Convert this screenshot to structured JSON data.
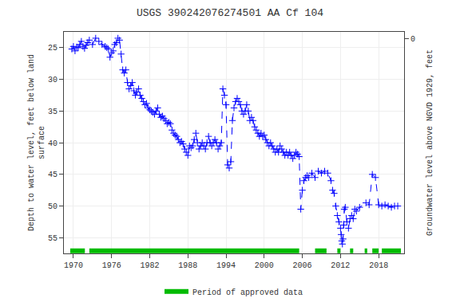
{
  "chart_data": {
    "type": "line",
    "title": "USGS 390242076274501 AA Cf 104",
    "ylabel": "Depth to water level, feet below land\nsurface",
    "y2label": "Groundwater level above NGVD 1929, feet",
    "x": [
      1969.75,
      1970.0,
      1970.25,
      1970.5,
      1970.75,
      1971.0,
      1971.25,
      1971.5,
      1971.75,
      1972.0,
      1972.25,
      1972.5,
      1973.0,
      1973.5,
      1974.0,
      1974.5,
      1975.0,
      1975.25,
      1975.5,
      1975.75,
      1976.0,
      1976.25,
      1976.5,
      1976.75,
      1977.0,
      1977.25,
      1977.5,
      1977.75,
      1978.0,
      1978.25,
      1978.5,
      1978.75,
      1979.0,
      1979.25,
      1979.5,
      1979.75,
      1980.0,
      1980.25,
      1980.5,
      1980.75,
      1981.0,
      1981.25,
      1981.5,
      1981.75,
      1982.0,
      1982.25,
      1982.5,
      1982.75,
      1983.0,
      1983.25,
      1983.5,
      1983.75,
      1984.0,
      1984.25,
      1984.5,
      1984.75,
      1985.0,
      1985.25,
      1985.5,
      1985.75,
      1986.0,
      1986.25,
      1986.5,
      1986.75,
      1987.0,
      1987.25,
      1987.5,
      1987.75,
      1988.0,
      1988.25,
      1988.5,
      1988.75,
      1989.0,
      1989.25,
      1989.5,
      1989.75,
      1990.0,
      1990.25,
      1990.5,
      1990.75,
      1991.0,
      1991.25,
      1991.5,
      1991.75,
      1992.0,
      1992.25,
      1992.5,
      1992.75,
      1993.0,
      1993.25,
      1993.5,
      1993.75,
      1994.0,
      1994.25,
      1994.5,
      1994.75,
      1995.0,
      1995.25,
      1995.5,
      1995.75,
      1996.0,
      1996.25,
      1996.5,
      1996.75,
      1997.0,
      1997.25,
      1997.5,
      1997.75,
      1998.0,
      1998.25,
      1998.5,
      1998.75,
      1999.0,
      1999.25,
      1999.5,
      1999.75,
      2000.0,
      2000.25,
      2000.5,
      2000.75,
      2001.0,
      2001.25,
      2001.5,
      2001.75,
      2002.0,
      2002.25,
      2002.5,
      2002.75,
      2003.0,
      2003.25,
      2003.5,
      2003.75,
      2004.0,
      2004.25,
      2004.5,
      2004.75,
      2005.0,
      2005.25,
      2005.5,
      2005.75,
      2006.0,
      2006.25,
      2006.5,
      2006.75,
      2007.0,
      2007.5,
      2008.0,
      2008.5,
      2009.0,
      2009.5,
      2010.0,
      2010.5,
      2010.75,
      2011.0,
      2011.25,
      2011.5,
      2011.75,
      2012.0,
      2012.1,
      2012.2,
      2012.3,
      2012.4,
      2012.5,
      2012.6,
      2012.75,
      2013.0,
      2013.25,
      2013.5,
      2013.75,
      2014.0,
      2014.25,
      2014.5,
      2015.0,
      2016.0,
      2016.5,
      2017.0,
      2017.5,
      2018.0,
      2018.5,
      2019.0,
      2019.5,
      2020.0,
      2020.5,
      2021.0
    ],
    "values": [
      25.2,
      24.8,
      25.5,
      24.9,
      25.0,
      24.5,
      24.0,
      24.8,
      25.1,
      24.6,
      24.2,
      23.8,
      24.5,
      23.5,
      24.0,
      24.5,
      24.8,
      25.0,
      25.2,
      26.5,
      25.8,
      25.5,
      24.5,
      24.2,
      23.5,
      23.8,
      26.0,
      28.5,
      29.0,
      28.5,
      30.5,
      31.5,
      31.0,
      30.5,
      31.8,
      32.5,
      32.0,
      31.5,
      32.5,
      33.0,
      33.5,
      34.0,
      33.8,
      34.5,
      34.8,
      35.0,
      35.2,
      35.5,
      35.0,
      34.5,
      35.5,
      36.0,
      35.8,
      36.2,
      36.5,
      37.0,
      36.8,
      37.0,
      38.0,
      38.5,
      38.8,
      39.0,
      39.5,
      40.0,
      39.8,
      40.2,
      41.0,
      41.5,
      42.0,
      40.5,
      40.8,
      40.5,
      39.5,
      38.5,
      40.0,
      41.0,
      40.5,
      40.0,
      40.5,
      41.0,
      40.0,
      39.0,
      40.0,
      40.5,
      40.0,
      39.5,
      40.0,
      41.0,
      40.5,
      40.0,
      31.5,
      32.5,
      34.0,
      43.5,
      44.0,
      43.0,
      36.5,
      34.5,
      33.5,
      33.0,
      33.5,
      34.0,
      35.0,
      35.5,
      35.0,
      34.0,
      35.0,
      36.5,
      36.0,
      36.5,
      37.5,
      38.0,
      38.5,
      39.0,
      38.5,
      39.0,
      38.8,
      39.5,
      40.0,
      40.5,
      40.0,
      40.5,
      41.0,
      41.5,
      41.0,
      41.5,
      40.5,
      41.0,
      41.5,
      42.0,
      41.5,
      42.0,
      41.5,
      42.0,
      42.5,
      42.0,
      41.5,
      41.8,
      42.2,
      50.5,
      47.5,
      46.0,
      45.5,
      45.2,
      45.5,
      44.8,
      45.5,
      44.5,
      44.8,
      44.5,
      44.8,
      46.0,
      47.5,
      48.0,
      50.0,
      51.5,
      52.5,
      53.5,
      54.5,
      55.5,
      56.0,
      55.2,
      53.0,
      50.5,
      50.2,
      52.5,
      53.5,
      52.0,
      51.5,
      52.0,
      50.5,
      50.8,
      50.2,
      49.5,
      49.8,
      45.0,
      45.5,
      49.8,
      50.0,
      49.8,
      50.0,
      50.2,
      50.0,
      50.0
    ],
    "color": "#0000FF",
    "marker": "+",
    "line_style": "dashed",
    "xlim": [
      1968.5,
      2022
    ],
    "xticks": [
      1970,
      1976,
      1982,
      1988,
      1994,
      2000,
      2006,
      2012,
      2018
    ],
    "ylim": [
      57.5,
      22.5
    ],
    "yticks": [
      25,
      30,
      35,
      40,
      45,
      50,
      55
    ],
    "y2lim": [
      30,
      -1
    ],
    "y2ticks": [
      0
    ],
    "grid": true,
    "legend": "bottom",
    "periods": {
      "name": "Period of approved data",
      "color": "#00bb00",
      "ranges": [
        [
          1969.5,
          1971.8
        ],
        [
          1972.5,
          2005.5
        ],
        [
          2008.0,
          2009.8
        ],
        [
          2011.5,
          2012.0
        ],
        [
          2013.5,
          2014.0
        ],
        [
          2015.8,
          2016.2
        ],
        [
          2017.0,
          2018.0
        ],
        [
          2018.5,
          2021.5
        ]
      ]
    }
  }
}
